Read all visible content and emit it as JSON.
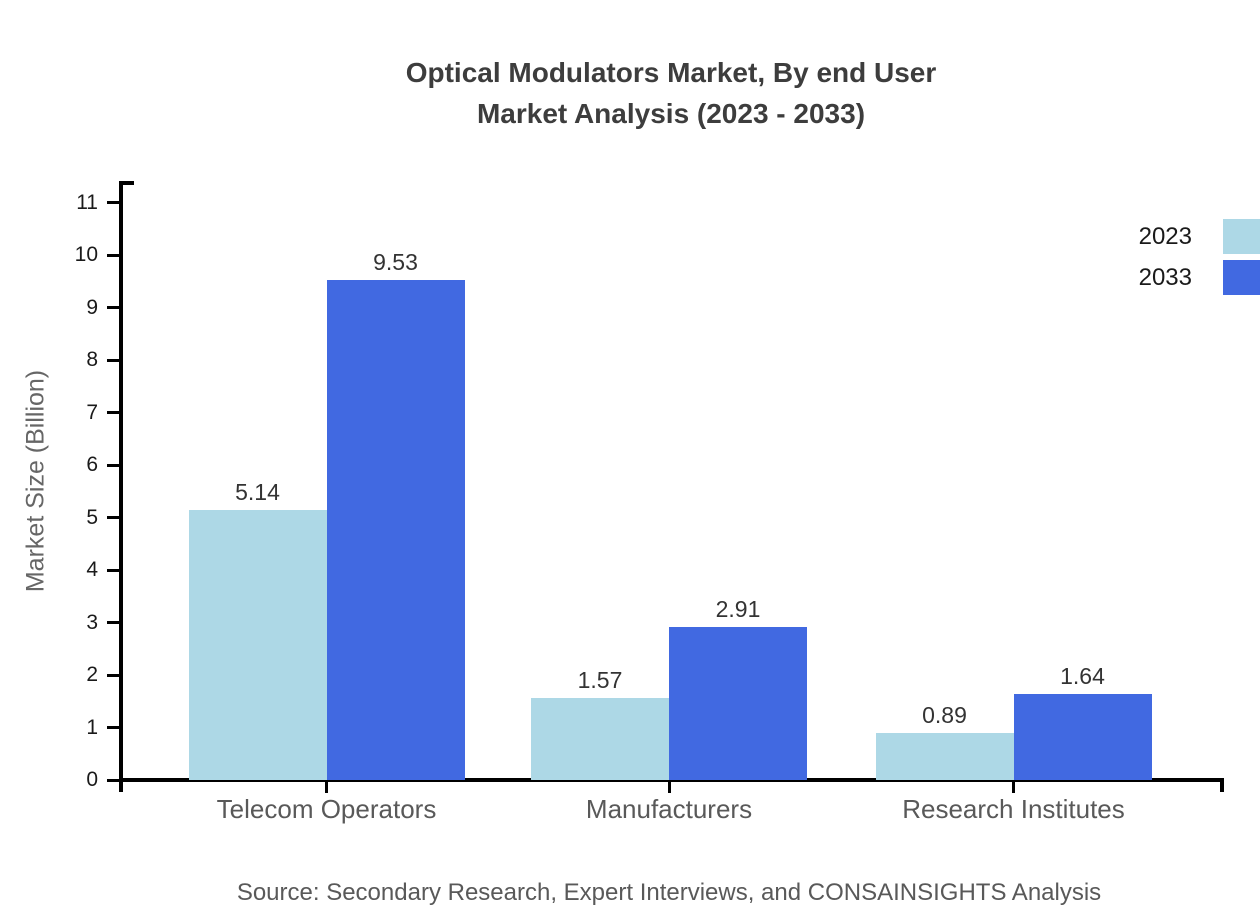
{
  "page": {
    "title_line1": "Optical Modulators Market, By end User",
    "title_line2": "Market Analysis (2023 - 2033)",
    "source": "Source: Secondary Research, Expert Interviews, and CONSAINSIGHTS Analysis"
  },
  "chart_data": {
    "type": "bar",
    "title": "Optical Modulators Market, By end User Market Analysis (2023 - 2033)",
    "categories": [
      "Telecom Operators",
      "Manufacturers",
      "Research Institutes"
    ],
    "series": [
      {
        "name": "2023",
        "color": "#ADD8E6",
        "values": [
          5.14,
          1.57,
          0.89
        ]
      },
      {
        "name": "2033",
        "color": "#4169E1",
        "values": [
          9.53,
          2.91,
          1.64
        ]
      }
    ],
    "xlabel": "",
    "ylabel": "Market Size (Billion)",
    "ylim": [
      0,
      11
    ],
    "ytick_step": 1,
    "grid": false,
    "legend_position": "top-right",
    "value_labels": true,
    "value_label_decimals": 2,
    "axis_color": "#000000",
    "source_note": "Source: Secondary Research, Expert Interviews, and CONSAINSIGHTS Analysis"
  }
}
